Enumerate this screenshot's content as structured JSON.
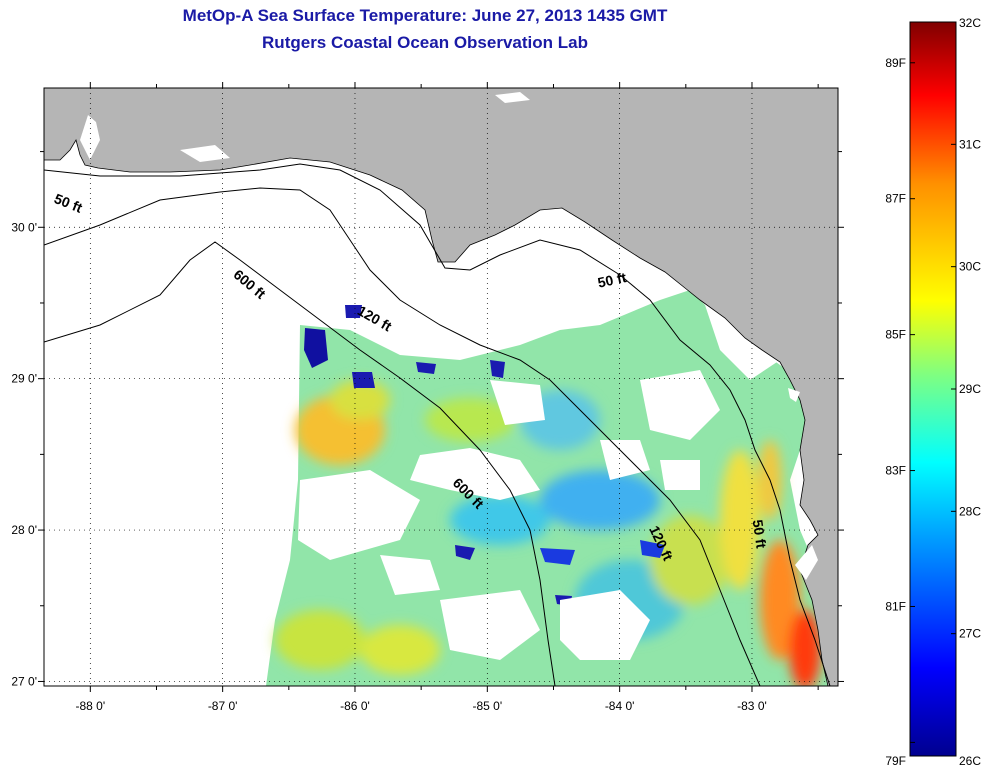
{
  "title_line1": "MetOp-A Sea Surface Temperature:  June 27, 2013 1435 GMT",
  "title_line2": "Rutgers Coastal Ocean Observation Lab",
  "map": {
    "lon_range": [
      -88.35,
      -82.35
    ],
    "lat_range": [
      26.97,
      30.92
    ],
    "lon_ticks": [
      -88,
      -87,
      -86,
      -85,
      -84,
      -83
    ],
    "lat_ticks": [
      27,
      28,
      29,
      30
    ],
    "lon_tick_labels": [
      "-88 0'",
      "-87 0'",
      "-86 0'",
      "-85 0'",
      "-84 0'",
      "-83 0'"
    ],
    "lat_tick_labels": [
      "27 0'",
      "28 0'",
      "29 0'",
      "30 0'"
    ],
    "grid": "dotted",
    "land_color": "#b5b5b5",
    "contour_labels": [
      {
        "text": "50 ft",
        "lon": -88.18,
        "lat": 30.13,
        "angle": 22
      },
      {
        "text": "600 ft",
        "lon": -86.82,
        "lat": 29.6,
        "angle": 40
      },
      {
        "text": "120 ft",
        "lon": -85.87,
        "lat": 29.37,
        "angle": 30
      },
      {
        "text": "50 ft",
        "lon": -84.05,
        "lat": 29.62,
        "angle": -12
      },
      {
        "text": "600 ft",
        "lon": -85.17,
        "lat": 28.22,
        "angle": 45
      },
      {
        "text": "120 ft",
        "lon": -83.72,
        "lat": 27.9,
        "angle": 65
      },
      {
        "text": "50 ft",
        "lon": -82.98,
        "lat": 27.97,
        "angle": 82
      }
    ]
  },
  "colorbar": {
    "left_labels": [
      "89F",
      "87F",
      "85F",
      "83F",
      "81F",
      "79F"
    ],
    "left_values": [
      89,
      87,
      85,
      83,
      81,
      79
    ],
    "right_labels": [
      "32C",
      "31C",
      "30C",
      "29C",
      "28C",
      "27C",
      "26C"
    ],
    "right_values": [
      32,
      31,
      30,
      29,
      28,
      27,
      26
    ],
    "range_c": [
      26,
      32
    ],
    "colors": [
      "#00008f",
      "#0000ff",
      "#00a0ff",
      "#00ffff",
      "#80ff80",
      "#ffff00",
      "#ff9000",
      "#ff0000",
      "#800000"
    ]
  }
}
